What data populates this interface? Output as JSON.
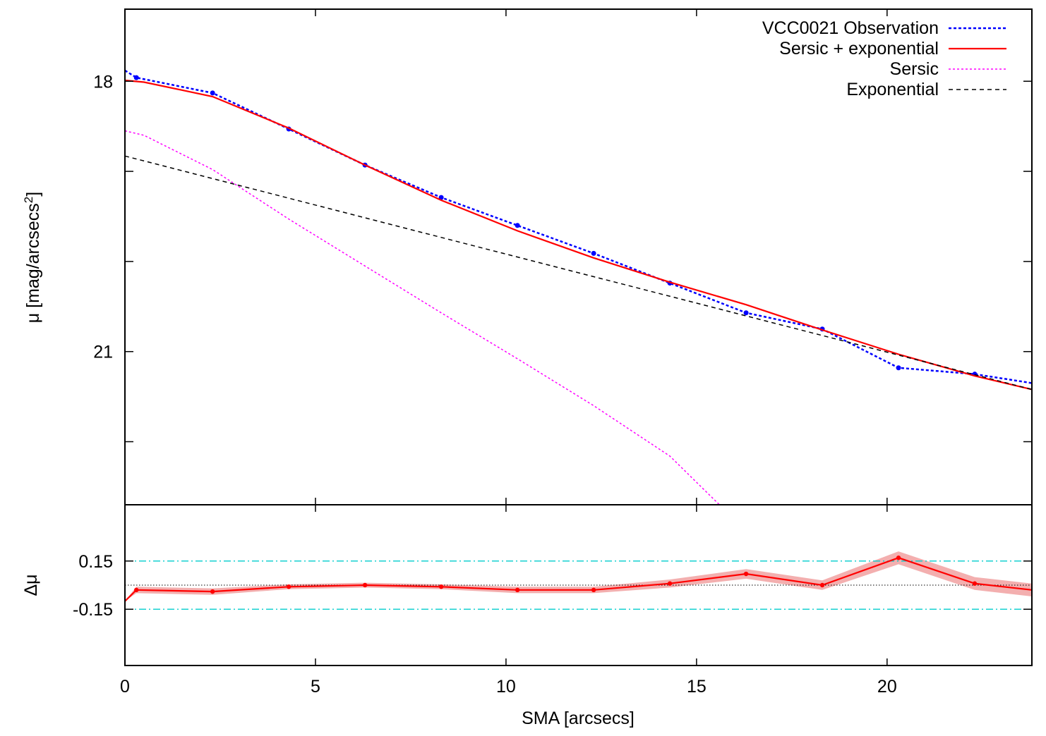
{
  "chart_data": [
    {
      "type": "line",
      "panel": "profile",
      "xlim": [
        0,
        23.8
      ],
      "ylim": [
        22.7,
        17.2
      ],
      "y_inverted": true,
      "ylabel_main": "μ [mag/arcsecs",
      "ylabel_sup": "2",
      "ylabel_tail": "]",
      "yticks": [
        18,
        19,
        20,
        21,
        22
      ],
      "ytick_labels": [
        "18",
        "",
        "",
        "21",
        ""
      ],
      "legend_position": "top-right",
      "series": [
        {
          "name": "VCC0021 Observation",
          "color": "#0000ff",
          "style": "dotted-with-points",
          "x": [
            0,
            0.3,
            2.3,
            4.3,
            6.3,
            8.3,
            10.3,
            12.3,
            14.3,
            16.3,
            18.3,
            20.3,
            22.3,
            23.8
          ],
          "y": [
            17.88,
            17.96,
            18.13,
            18.53,
            18.93,
            19.29,
            19.6,
            19.91,
            20.24,
            20.57,
            20.75,
            21.18,
            21.25,
            21.35
          ]
        },
        {
          "name": "Sersic + exponential",
          "color": "#ff0000",
          "style": "solid",
          "x": [
            0,
            0.5,
            2.3,
            4.3,
            6.3,
            8.3,
            10.3,
            12.3,
            14.3,
            16.3,
            18.3,
            20.3,
            22.3,
            23.8
          ],
          "y": [
            17.99,
            18.01,
            18.17,
            18.52,
            18.93,
            19.32,
            19.66,
            19.96,
            20.23,
            20.48,
            20.76,
            21.03,
            21.27,
            21.42
          ]
        },
        {
          "name": "Sersic",
          "color": "#ff00ff",
          "style": "dotted",
          "x": [
            0,
            0.5,
            2.3,
            4.3,
            6.3,
            8.3,
            10.3,
            12.3,
            14.3,
            15.6
          ],
          "y": [
            18.55,
            18.6,
            18.98,
            19.53,
            20.05,
            20.57,
            21.08,
            21.6,
            22.16,
            22.7
          ]
        },
        {
          "name": "Exponential",
          "color": "#000000",
          "style": "dashed",
          "x": [
            0,
            23.8
          ],
          "y": [
            18.83,
            21.42
          ]
        }
      ]
    },
    {
      "type": "line",
      "panel": "residuals",
      "xlim": [
        0,
        23.8
      ],
      "ylim": [
        -0.5,
        0.5
      ],
      "y_inverted": true,
      "ylabel": "Δμ",
      "xlabel": "SMA [arcsecs]",
      "xticks": [
        0,
        5,
        10,
        15,
        20
      ],
      "xtick_labels": [
        "0",
        "5",
        "10",
        "15",
        "20"
      ],
      "yticks": [
        0.15,
        -0.15
      ],
      "ytick_labels": [
        "0.15",
        "-0.15"
      ],
      "reference_lines": [
        0.15,
        -0.15
      ],
      "reference_color": "#00cccc",
      "zero_line": 0,
      "residual": {
        "color": "#ff0000",
        "band_color": "#f2a6a6",
        "x": [
          0,
          0.3,
          2.3,
          4.3,
          6.3,
          8.3,
          10.3,
          12.3,
          14.3,
          16.3,
          18.3,
          20.3,
          22.3,
          23.8
        ],
        "y": [
          -0.1,
          -0.03,
          -0.04,
          -0.01,
          0.0,
          -0.01,
          -0.03,
          -0.03,
          0.01,
          0.07,
          0.0,
          0.17,
          0.01,
          -0.03
        ],
        "band": [
          0.0,
          0.02,
          0.02,
          0.015,
          0.015,
          0.015,
          0.02,
          0.02,
          0.025,
          0.03,
          0.03,
          0.04,
          0.04,
          0.04
        ]
      }
    }
  ]
}
